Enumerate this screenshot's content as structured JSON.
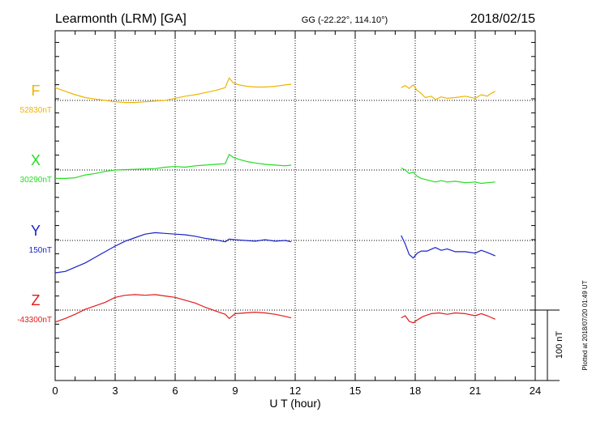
{
  "header": {
    "station": "Learmonth (LRM)  [GA]",
    "coords": "GG (-22.22°, 114.10°)",
    "date": "2018/02/15"
  },
  "side_note": "Plotted at 2018/07/20 01:49 UT",
  "chart_data": {
    "type": "line",
    "xlabel": "U T (hour)",
    "xlim": [
      0,
      24
    ],
    "x_ticks": [
      "0",
      "3",
      "6",
      "9",
      "12",
      "15",
      "18",
      "21",
      "24"
    ],
    "scale_bar": {
      "label": "100 nT",
      "nT": 100
    },
    "series": [
      {
        "name": "F",
        "baseline_label": "52830nT",
        "baseline_nT": 52830,
        "color": "#f0b400",
        "segments": [
          [
            [
              0,
              18
            ],
            [
              0.5,
              13
            ],
            [
              1,
              8
            ],
            [
              1.5,
              4
            ],
            [
              2,
              2
            ],
            [
              2.5,
              0
            ],
            [
              3,
              -2
            ],
            [
              3.5,
              -3
            ],
            [
              4,
              -3
            ],
            [
              4.5,
              -2
            ],
            [
              5,
              -1
            ],
            [
              5.5,
              0
            ],
            [
              6,
              3
            ],
            [
              6.5,
              6
            ],
            [
              7,
              8
            ],
            [
              7.5,
              11
            ],
            [
              8,
              14
            ],
            [
              8.5,
              18
            ],
            [
              8.7,
              32
            ],
            [
              8.9,
              25
            ],
            [
              9.2,
              22
            ],
            [
              9.6,
              20
            ],
            [
              10,
              19
            ],
            [
              10.5,
              19
            ],
            [
              11,
              20
            ],
            [
              11.5,
              22
            ],
            [
              11.8,
              23
            ]
          ],
          [
            [
              17.3,
              18
            ],
            [
              17.5,
              21
            ],
            [
              17.7,
              17
            ],
            [
              17.9,
              22
            ],
            [
              18.1,
              14
            ],
            [
              18.3,
              10
            ],
            [
              18.5,
              4
            ],
            [
              18.8,
              6
            ],
            [
              19,
              1
            ],
            [
              19.3,
              5
            ],
            [
              19.6,
              3
            ],
            [
              20,
              4
            ],
            [
              20.5,
              6
            ],
            [
              21,
              3
            ],
            [
              21.3,
              8
            ],
            [
              21.6,
              6
            ],
            [
              21.8,
              10
            ],
            [
              22,
              13
            ]
          ]
        ]
      },
      {
        "name": "X",
        "baseline_label": "30290nT",
        "baseline_nT": 30290,
        "color": "#22dd22",
        "segments": [
          [
            [
              0,
              -12
            ],
            [
              0.5,
              -12
            ],
            [
              1,
              -11
            ],
            [
              1.5,
              -7
            ],
            [
              2,
              -5
            ],
            [
              2.5,
              -2
            ],
            [
              3,
              0
            ],
            [
              4,
              1
            ],
            [
              5,
              2
            ],
            [
              5.5,
              4
            ],
            [
              6,
              5
            ],
            [
              6.5,
              4
            ],
            [
              7,
              6
            ],
            [
              7.5,
              7
            ],
            [
              8,
              8
            ],
            [
              8.5,
              9
            ],
            [
              8.7,
              22
            ],
            [
              8.9,
              18
            ],
            [
              9.2,
              15
            ],
            [
              9.6,
              12
            ],
            [
              10,
              10
            ],
            [
              10.5,
              8
            ],
            [
              11,
              7
            ],
            [
              11.5,
              6
            ],
            [
              11.8,
              7
            ]
          ],
          [
            [
              17.3,
              3
            ],
            [
              17.5,
              0
            ],
            [
              17.7,
              -5
            ],
            [
              17.9,
              -3
            ],
            [
              18.1,
              -9
            ],
            [
              18.3,
              -12
            ],
            [
              18.6,
              -14
            ],
            [
              19,
              -17
            ],
            [
              19.3,
              -15
            ],
            [
              19.6,
              -17
            ],
            [
              20,
              -16
            ],
            [
              20.5,
              -18
            ],
            [
              21,
              -17
            ],
            [
              21.3,
              -19
            ],
            [
              21.6,
              -18
            ],
            [
              22,
              -17
            ]
          ]
        ]
      },
      {
        "name": "Y",
        "baseline_label": "150nT",
        "baseline_nT": 150,
        "color": "#1a22cc",
        "segments": [
          [
            [
              0,
              -46
            ],
            [
              0.5,
              -44
            ],
            [
              1,
              -38
            ],
            [
              1.5,
              -32
            ],
            [
              2,
              -24
            ],
            [
              2.5,
              -16
            ],
            [
              3,
              -8
            ],
            [
              3.5,
              -1
            ],
            [
              4,
              4
            ],
            [
              4.5,
              9
            ],
            [
              5,
              11
            ],
            [
              5.5,
              10
            ],
            [
              6,
              9
            ],
            [
              6.5,
              8
            ],
            [
              7,
              6
            ],
            [
              7.5,
              3
            ],
            [
              8,
              1
            ],
            [
              8.5,
              -2
            ],
            [
              8.7,
              2
            ],
            [
              9,
              1
            ],
            [
              9.5,
              0
            ],
            [
              10,
              -1
            ],
            [
              10.5,
              1
            ],
            [
              11,
              -1
            ],
            [
              11.5,
              0
            ],
            [
              11.8,
              -2
            ]
          ],
          [
            [
              17.3,
              7
            ],
            [
              17.5,
              -5
            ],
            [
              17.7,
              -20
            ],
            [
              17.9,
              -25
            ],
            [
              18.1,
              -18
            ],
            [
              18.3,
              -15
            ],
            [
              18.6,
              -15
            ],
            [
              19,
              -10
            ],
            [
              19.3,
              -14
            ],
            [
              19.6,
              -12
            ],
            [
              20,
              -16
            ],
            [
              20.5,
              -16
            ],
            [
              21,
              -18
            ],
            [
              21.3,
              -14
            ],
            [
              21.6,
              -17
            ],
            [
              22,
              -22
            ]
          ]
        ]
      },
      {
        "name": "Z",
        "baseline_label": "-43300nT",
        "baseline_nT": -43300,
        "color": "#e41a1a",
        "segments": [
          [
            [
              0,
              -17
            ],
            [
              0.5,
              -12
            ],
            [
              1,
              -6
            ],
            [
              1.5,
              1
            ],
            [
              2,
              6
            ],
            [
              2.5,
              11
            ],
            [
              3,
              18
            ],
            [
              3.5,
              21
            ],
            [
              4,
              22
            ],
            [
              4.5,
              21
            ],
            [
              5,
              22
            ],
            [
              5.5,
              20
            ],
            [
              6,
              18
            ],
            [
              6.5,
              14
            ],
            [
              7,
              10
            ],
            [
              7.5,
              4
            ],
            [
              8,
              -1
            ],
            [
              8.5,
              -6
            ],
            [
              8.7,
              -12
            ],
            [
              9,
              -5
            ],
            [
              9.5,
              -4
            ],
            [
              10,
              -3
            ],
            [
              10.5,
              -4
            ],
            [
              11,
              -6
            ],
            [
              11.5,
              -9
            ],
            [
              11.8,
              -11
            ]
          ],
          [
            [
              17.3,
              -11
            ],
            [
              17.5,
              -8
            ],
            [
              17.7,
              -16
            ],
            [
              17.9,
              -18
            ],
            [
              18.1,
              -14
            ],
            [
              18.4,
              -9
            ],
            [
              18.8,
              -5
            ],
            [
              19.2,
              -4
            ],
            [
              19.6,
              -6
            ],
            [
              20,
              -4
            ],
            [
              20.5,
              -5
            ],
            [
              21,
              -8
            ],
            [
              21.3,
              -5
            ],
            [
              21.6,
              -8
            ],
            [
              22,
              -13
            ]
          ]
        ]
      }
    ]
  }
}
